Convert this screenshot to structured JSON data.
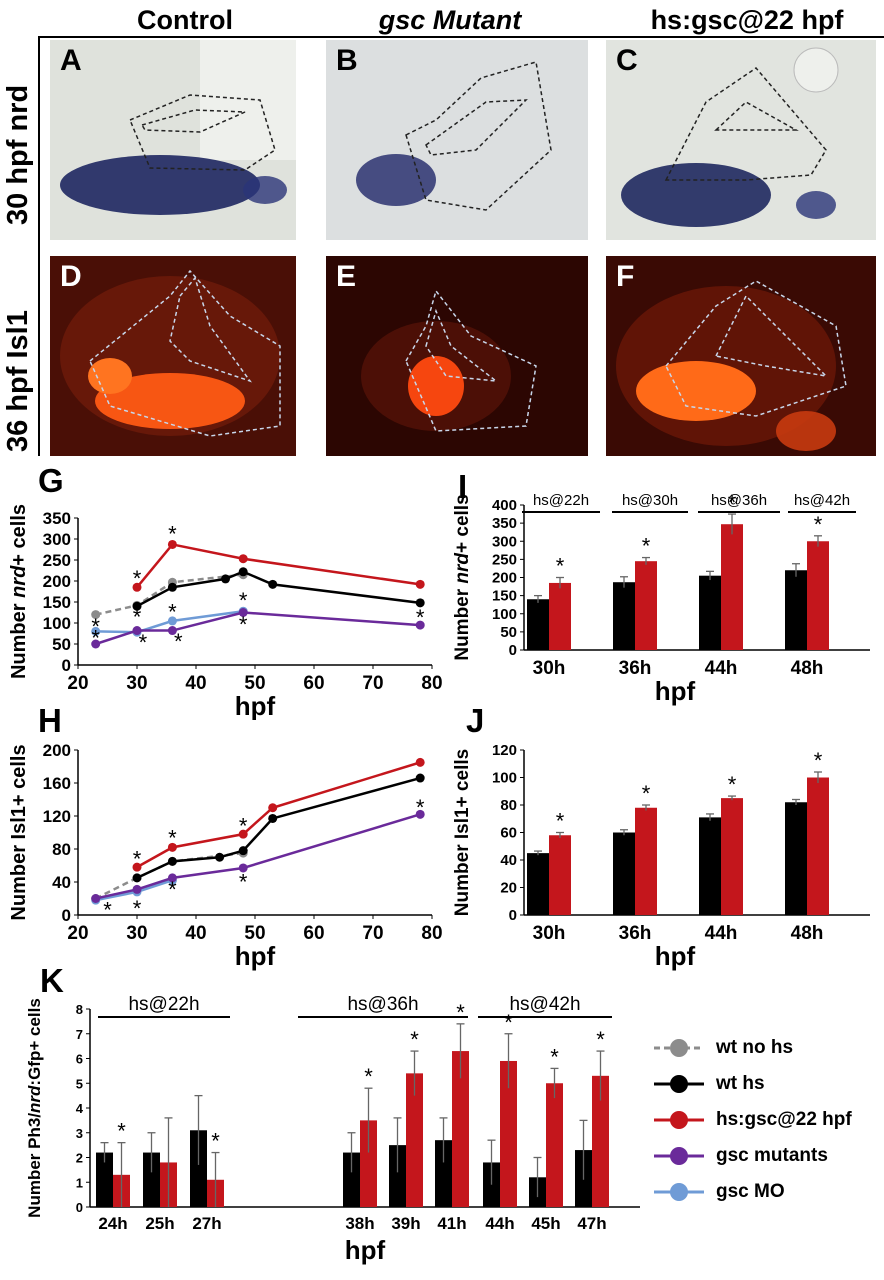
{
  "columns": [
    "Control",
    "gsc Mutant",
    "hs:gsc@22 hpf"
  ],
  "row_labels": [
    "30 hpf nrd",
    "36 hpf Isl1"
  ],
  "panel_letters": [
    "A",
    "B",
    "C",
    "D",
    "E",
    "F"
  ],
  "chart_letters": [
    "G",
    "I",
    "H",
    "J",
    "K"
  ],
  "colors": {
    "wt_no_hs": "#8c8c8c",
    "wt_hs": "#000000",
    "hs_gsc": "#c4161c",
    "gsc_mut": "#6a2a9a",
    "gsc_mo": "#6f9bd6"
  },
  "chart_data": [
    {
      "id": "G",
      "type": "line",
      "xlabel": "hpf",
      "ylabel": "Number nrd+ cells",
      "xlim": [
        20,
        80
      ],
      "ylim": [
        0,
        350
      ],
      "xticks": [
        20,
        30,
        40,
        50,
        60,
        70,
        80
      ],
      "yticks": [
        0,
        50,
        100,
        150,
        200,
        250,
        300,
        350
      ],
      "series": [
        {
          "name": "wt no hs",
          "color": "#8c8c8c",
          "dashed": true,
          "x": [
            23,
            30,
            36,
            48
          ],
          "y": [
            120,
            142,
            197,
            215
          ]
        },
        {
          "name": "wt hs",
          "color": "#000000",
          "x": [
            30,
            36,
            45,
            48,
            53,
            78
          ],
          "y": [
            140,
            185,
            205,
            222,
            192,
            148
          ]
        },
        {
          "name": "hs:gsc@22 hpf",
          "color": "#c4161c",
          "x": [
            30,
            36,
            48,
            78
          ],
          "y": [
            185,
            287,
            253,
            192
          ]
        },
        {
          "name": "gsc MO",
          "color": "#6f9bd6",
          "x": [
            23,
            30,
            36,
            48
          ],
          "y": [
            80,
            78,
            105,
            128
          ]
        },
        {
          "name": "gsc mutants",
          "color": "#6a2a9a",
          "x": [
            23,
            30,
            36,
            48,
            78
          ],
          "y": [
            50,
            82,
            82,
            125,
            95
          ]
        }
      ],
      "stars": [
        [
          30,
          210
        ],
        [
          36,
          315
        ],
        [
          23,
          95
        ],
        [
          30,
          118
        ],
        [
          36,
          130
        ],
        [
          48,
          157
        ],
        [
          78,
          117
        ],
        [
          23,
          68
        ],
        [
          31,
          57
        ],
        [
          37,
          60
        ],
        [
          48,
          100
        ]
      ]
    },
    {
      "id": "I",
      "type": "bar",
      "xlabel": "hpf",
      "ylabel": "Number nrd+ cells",
      "ylim": [
        0,
        400
      ],
      "yticks": [
        0,
        50,
        100,
        150,
        200,
        250,
        300,
        350,
        400
      ],
      "categories": [
        "30h",
        "36h",
        "44h",
        "48h"
      ],
      "groups": [
        "hs@22h",
        "hs@30h",
        "hs@36h",
        "hs@42h"
      ],
      "series": [
        {
          "name": "wt hs",
          "color": "#000000",
          "values": [
            140,
            187,
            205,
            220
          ],
          "err": [
            10,
            15,
            12,
            18
          ]
        },
        {
          "name": "hs:gsc@22 hpf",
          "color": "#c4161c",
          "values": [
            185,
            245,
            347,
            300
          ],
          "err": [
            15,
            10,
            28,
            15
          ]
        }
      ],
      "stars": [
        true,
        true,
        true,
        true
      ]
    },
    {
      "id": "H",
      "type": "line",
      "xlabel": "hpf",
      "ylabel": "Number Isl1+ cells",
      "xlim": [
        20,
        80
      ],
      "ylim": [
        0,
        200
      ],
      "xticks": [
        20,
        30,
        40,
        50,
        60,
        70,
        80
      ],
      "yticks": [
        0,
        40,
        80,
        120,
        160,
        200
      ],
      "series": [
        {
          "name": "wt no hs",
          "color": "#8c8c8c",
          "dashed": true,
          "x": [
            23,
            30,
            36,
            48
          ],
          "y": [
            20,
            45,
            65,
            75
          ]
        },
        {
          "name": "wt hs",
          "color": "#000000",
          "x": [
            30,
            36,
            44,
            48,
            53,
            78
          ],
          "y": [
            45,
            65,
            70,
            78,
            117,
            166
          ]
        },
        {
          "name": "hs:gsc@22 hpf",
          "color": "#c4161c",
          "x": [
            30,
            36,
            48,
            53,
            78
          ],
          "y": [
            58,
            82,
            98,
            130,
            185
          ]
        },
        {
          "name": "gsc MO",
          "color": "#6f9bd6",
          "x": [
            23,
            30,
            36
          ],
          "y": [
            18,
            28,
            42
          ]
        },
        {
          "name": "gsc mutants",
          "color": "#6a2a9a",
          "x": [
            23,
            30,
            36,
            48,
            78
          ],
          "y": [
            20,
            31,
            45,
            57,
            122
          ]
        }
      ],
      "stars": [
        [
          30,
          70
        ],
        [
          36,
          95
        ],
        [
          48,
          110
        ],
        [
          78,
          132
        ],
        [
          25,
          8
        ],
        [
          30,
          10
        ],
        [
          36,
          33
        ],
        [
          48,
          42
        ]
      ]
    },
    {
      "id": "J",
      "type": "bar",
      "xlabel": "hpf",
      "ylabel": "Number Isl1+ cells",
      "ylim": [
        0,
        120
      ],
      "yticks": [
        0,
        20,
        40,
        60,
        80,
        100,
        120
      ],
      "categories": [
        "30h",
        "36h",
        "44h",
        "48h"
      ],
      "series": [
        {
          "name": "wt hs",
          "color": "#000000",
          "values": [
            45,
            60,
            71,
            82
          ],
          "err": [
            1.5,
            2,
            2.5,
            2
          ]
        },
        {
          "name": "hs:gsc@22 hpf",
          "color": "#c4161c",
          "values": [
            58,
            78,
            85,
            100
          ],
          "err": [
            2,
            2,
            1.5,
            4
          ]
        }
      ],
      "stars": [
        true,
        true,
        true,
        true
      ]
    },
    {
      "id": "K",
      "type": "bar",
      "xlabel": "hpf",
      "ylabel": "Number Ph3/nrd:Gfp+ cells",
      "ylim": [
        0,
        8
      ],
      "yticks": [
        0,
        1,
        2,
        3,
        4,
        5,
        6,
        7,
        8
      ],
      "categories": [
        "24h",
        "25h",
        "27h",
        "38h",
        "39h",
        "41h",
        "44h",
        "45h",
        "47h"
      ],
      "groups": [
        "hs@22h",
        "hs@36h",
        "hs@42h"
      ],
      "series": [
        {
          "name": "wt hs",
          "color": "#000000",
          "values": [
            2.2,
            2.2,
            3.1,
            2.2,
            2.5,
            2.7,
            1.8,
            1.2,
            2.3
          ],
          "err": [
            0.4,
            0.8,
            1.4,
            0.8,
            1.1,
            0.9,
            0.9,
            0.8,
            1.2
          ]
        },
        {
          "name": "hs:gsc@22 hpf",
          "color": "#c4161c",
          "values": [
            1.3,
            1.8,
            1.1,
            3.5,
            5.4,
            6.3,
            5.9,
            5.0,
            5.3
          ],
          "err": [
            1.3,
            1.8,
            1.1,
            1.3,
            0.9,
            1.1,
            1.1,
            0.6,
            1.0
          ]
        }
      ],
      "stars": [
        true,
        false,
        true,
        true,
        true,
        true,
        true,
        true,
        true
      ]
    }
  ],
  "legend": [
    {
      "label": "wt no hs",
      "color": "#8c8c8c",
      "dashed": true
    },
    {
      "label": "wt hs",
      "color": "#000000"
    },
    {
      "label": "hs:gsc@22 hpf",
      "color": "#c4161c"
    },
    {
      "label": "gsc mutants",
      "color": "#6a2a9a"
    },
    {
      "label": "gsc MO",
      "color": "#6f9bd6"
    }
  ]
}
